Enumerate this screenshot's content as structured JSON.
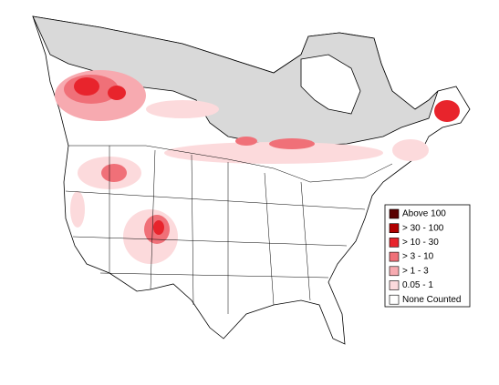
{
  "legend": {
    "items": [
      {
        "label": "Above 100",
        "color": "#5a0000"
      },
      {
        "label": "> 30 - 100",
        "color": "#b00000"
      },
      {
        "label": "> 10 - 30",
        "color": "#e8242c"
      },
      {
        "label": "> 3 - 10",
        "color": "#f07078"
      },
      {
        "label": "> 1 - 3",
        "color": "#f7aab0"
      },
      {
        "label": "0.05 - 1",
        "color": "#fcdadc"
      },
      {
        "label": "None Counted",
        "color": "#ffffff"
      }
    ]
  }
}
